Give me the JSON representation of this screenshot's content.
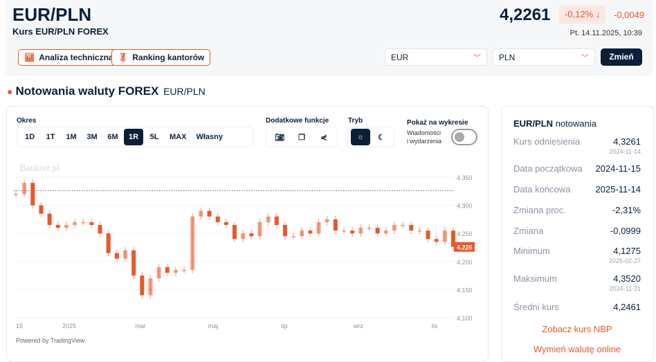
{
  "header": {
    "title": "EUR/PLN",
    "subtitle": "Kurs EUR/PLN FOREX",
    "price": "4,2261",
    "change_pct": "-0,12%",
    "change": "-0,0049",
    "datetime": "Pt. 14.11.2025, 10:39",
    "btn_analysis": "Analiza techniczna",
    "btn_ranking": "Ranking kantorów",
    "from_currency": "EUR",
    "to_currency": "PLN",
    "btn_change": "Zmień"
  },
  "section": {
    "title": "Notowania waluty FOREX",
    "pair": "EUR/PLN"
  },
  "controls": {
    "period_label": "Okres",
    "periods": [
      "1D",
      "1T",
      "1M",
      "3M",
      "6M",
      "1R",
      "5L",
      "MAX",
      "Własny"
    ],
    "active_period": "1R",
    "extra_label": "Dodatkowe funkcje",
    "mode_label": "Tryb",
    "show_label": "Pokaż na wykresie",
    "news_label_1": "Wiadomości",
    "news_label_2": "i wydarzenia",
    "news_toggle_on": false
  },
  "chart_data": {
    "type": "candlestick",
    "watermark": "Bankier.pl",
    "footer": "Powered by TradingView",
    "x_ticks": [
      "15",
      "2025",
      "mar",
      "maj",
      "lip",
      "wrz",
      "lis"
    ],
    "y_ticks": [
      "4.350",
      "4.300",
      "4.250",
      "4.200",
      "4.150",
      "4.100"
    ],
    "ylim": [
      4.1,
      4.36
    ],
    "reference_line": 4.3261,
    "last_value": "4.226",
    "date_range": [
      "2024-11-15",
      "2025-11-14"
    ],
    "weekly_close": [
      4.32,
      4.34,
      4.3,
      4.285,
      4.265,
      4.26,
      4.265,
      4.27,
      4.27,
      4.265,
      4.25,
      4.215,
      4.205,
      4.22,
      4.175,
      4.14,
      4.17,
      4.19,
      4.18,
      4.185,
      4.185,
      4.28,
      4.29,
      4.28,
      4.27,
      4.265,
      4.24,
      4.25,
      4.245,
      4.27,
      4.28,
      4.265,
      4.245,
      4.245,
      4.255,
      4.25,
      4.27,
      4.275,
      4.255,
      4.255,
      4.25,
      4.26,
      4.26,
      4.25,
      4.255,
      4.265,
      4.265,
      4.255,
      4.255,
      4.24,
      4.235,
      4.255,
      4.226
    ],
    "colors": {
      "candle": "#e8582a",
      "reference": "#555b66"
    }
  },
  "side": {
    "title_bold": "EUR/PLN",
    "title": "notowania",
    "rows": [
      {
        "k": "Kurs odniesienia",
        "v": "4,3261",
        "d": "2024-11-14"
      },
      {
        "k": "Data początkowa",
        "v": "2024-11-15"
      },
      {
        "k": "Data końcowa",
        "v": "2025-11-14"
      },
      {
        "k": "Zmiana proc.",
        "v": "-2,31%"
      },
      {
        "k": "Zmiana",
        "v": "-0,0999"
      },
      {
        "k": "Minimum",
        "v": "4,1275",
        "d": "2025-02-27"
      },
      {
        "k": "Maksimum",
        "v": "4,3520",
        "d": "2024-11-21"
      },
      {
        "k": "Średni kurs",
        "v": "4,2461"
      }
    ],
    "link_nbp": "Zobacz kurs NBP",
    "link_exchange": "Wymień walutę online"
  },
  "colors": {
    "accent": "#e8582a",
    "navy": "#0b1f3a"
  }
}
